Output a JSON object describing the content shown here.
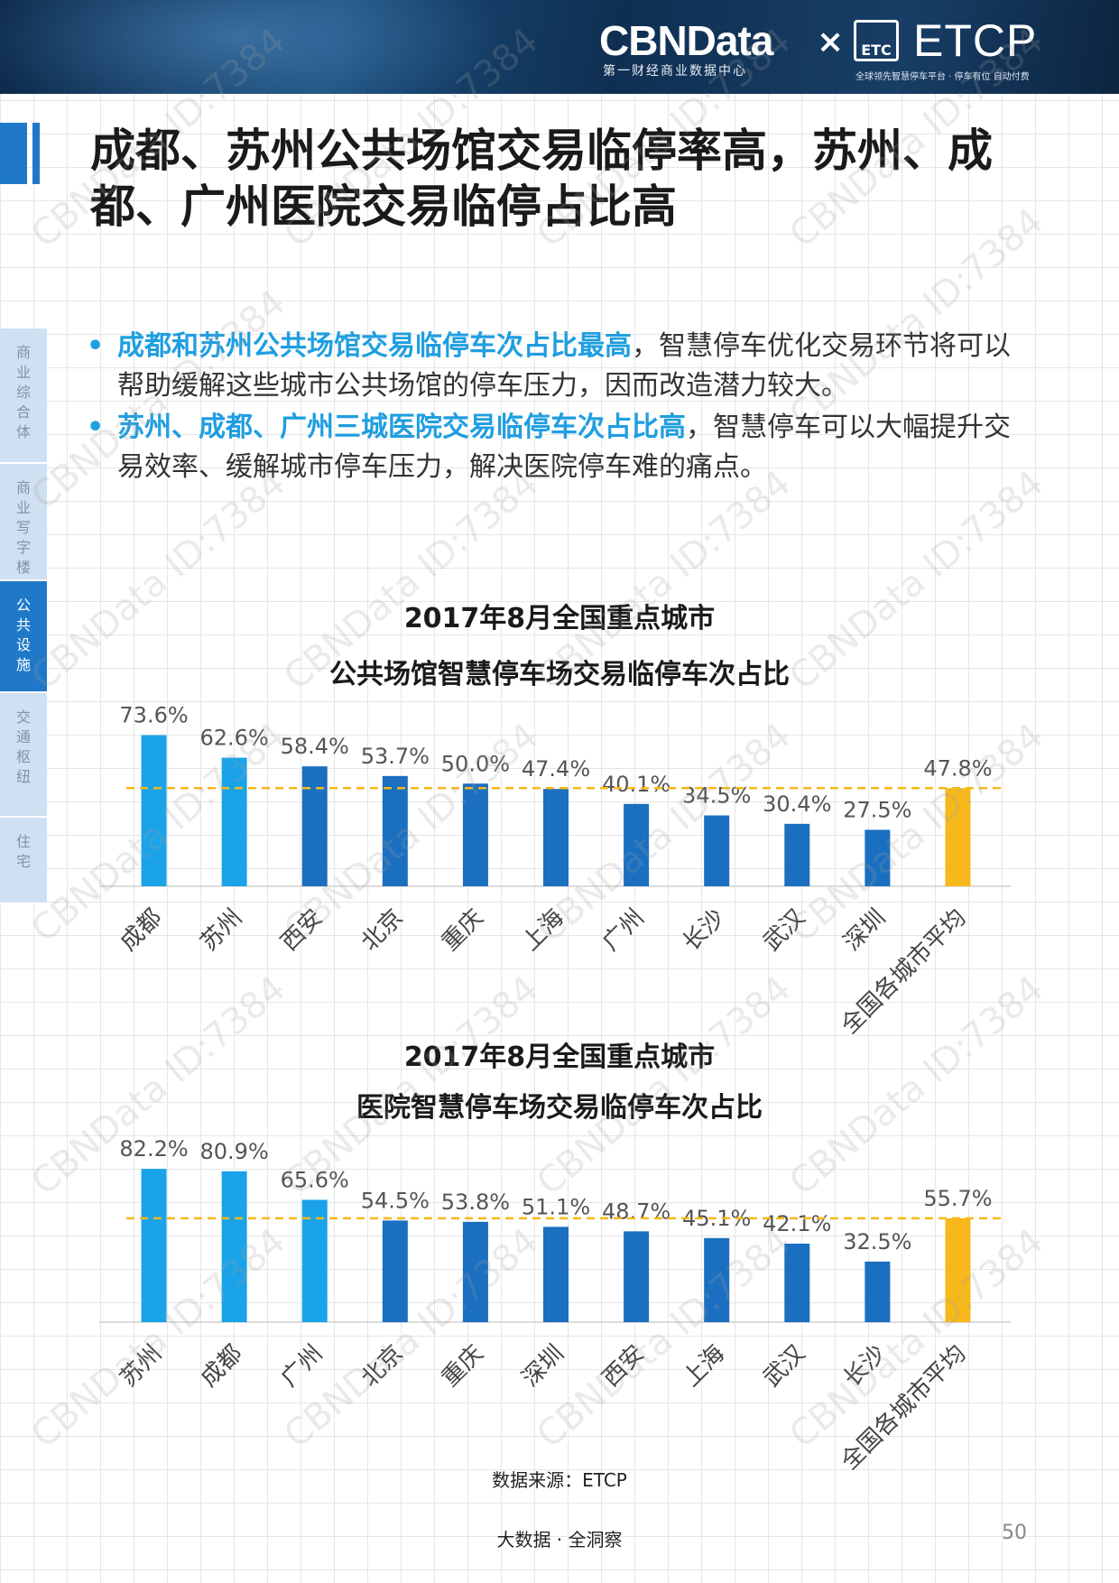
{
  "header": {
    "cbn_logo": "CBNData",
    "cbn_sub": "第一财经商业数据中心",
    "times": "×",
    "etc_badge": "ETC",
    "etcp_logo": "ETCP",
    "etcp_sub": "全球领先智慧停车平台 · 停车有位 自动付费"
  },
  "title": "成都、苏州公共场馆交易临停率高，苏州、成都、广州医院交易临停占比高",
  "sidebar": {
    "items": [
      {
        "label": "商业综合体",
        "active": false
      },
      {
        "label": "商业写字楼",
        "active": false
      },
      {
        "label": "公共设施",
        "active": true
      },
      {
        "label": "交通枢纽",
        "active": false
      },
      {
        "label": "住宅",
        "active": false
      }
    ]
  },
  "bullets": [
    {
      "dot": "•",
      "highlight": "成都和苏州公共场馆交易临停车次占比最高",
      "text": "，智慧停车优化交易环节将可以帮助缓解这些城市公共场馆的停车压力，因而改造潜力较大。"
    },
    {
      "dot": "•",
      "highlight": "苏州、成都、广州三城医院交易临停车次占比高",
      "text": "，智慧停车可以大幅提升交易效率、缓解城市停车压力，解决医院停车难的痛点。"
    }
  ],
  "chart_data": [
    {
      "type": "bar",
      "title": "2017年8月全国重点城市",
      "subtitle": "公共场馆智慧停车场交易临停车次占比",
      "categories": [
        "成都",
        "苏州",
        "西安",
        "北京",
        "重庆",
        "上海",
        "广州",
        "长沙",
        "武汉",
        "深圳",
        "全国各城市平均"
      ],
      "values": [
        73.6,
        62.6,
        58.4,
        53.7,
        50.0,
        47.4,
        40.1,
        34.5,
        30.4,
        27.5,
        47.8
      ],
      "labels": [
        "73.6%",
        "62.6%",
        "58.4%",
        "53.7%",
        "50.0%",
        "47.4%",
        "40.1%",
        "34.5%",
        "30.4%",
        "27.5%",
        "47.8%"
      ],
      "average_line": 47.8,
      "ylim": [
        0,
        80
      ],
      "colors": [
        "#1aa3e8",
        "#1aa3e8",
        "#1a6fc0",
        "#1a6fc0",
        "#1a6fc0",
        "#1a6fc0",
        "#1a6fc0",
        "#1a6fc0",
        "#1a6fc0",
        "#1a6fc0",
        "#f6b81a"
      ]
    },
    {
      "type": "bar",
      "title": "2017年8月全国重点城市",
      "subtitle": "医院智慧停车场交易临停车次占比",
      "categories": [
        "苏州",
        "成都",
        "广州",
        "北京",
        "重庆",
        "深圳",
        "西安",
        "上海",
        "武汉",
        "长沙",
        "全国各城市平均"
      ],
      "values": [
        82.2,
        80.9,
        65.6,
        54.5,
        53.8,
        51.1,
        48.7,
        45.1,
        42.1,
        32.5,
        55.7
      ],
      "labels": [
        "82.2%",
        "80.9%",
        "65.6%",
        "54.5%",
        "53.8%",
        "51.1%",
        "48.7%",
        "45.1%",
        "42.1%",
        "32.5%",
        "55.7%"
      ],
      "average_line": 55.7,
      "ylim": [
        0,
        90
      ],
      "colors": [
        "#1aa3e8",
        "#1aa3e8",
        "#1aa3e8",
        "#1a6fc0",
        "#1a6fc0",
        "#1a6fc0",
        "#1a6fc0",
        "#1a6fc0",
        "#1a6fc0",
        "#1a6fc0",
        "#f6b81a"
      ]
    }
  ],
  "source": "数据来源：ETCP",
  "footer": "大数据 · 全洞察",
  "page_number": "50",
  "watermark": "CBNData ID:7384",
  "colors": {
    "accent": "#1f78c8",
    "highlight": "#1f9ee0",
    "average": "#f6b81a"
  }
}
